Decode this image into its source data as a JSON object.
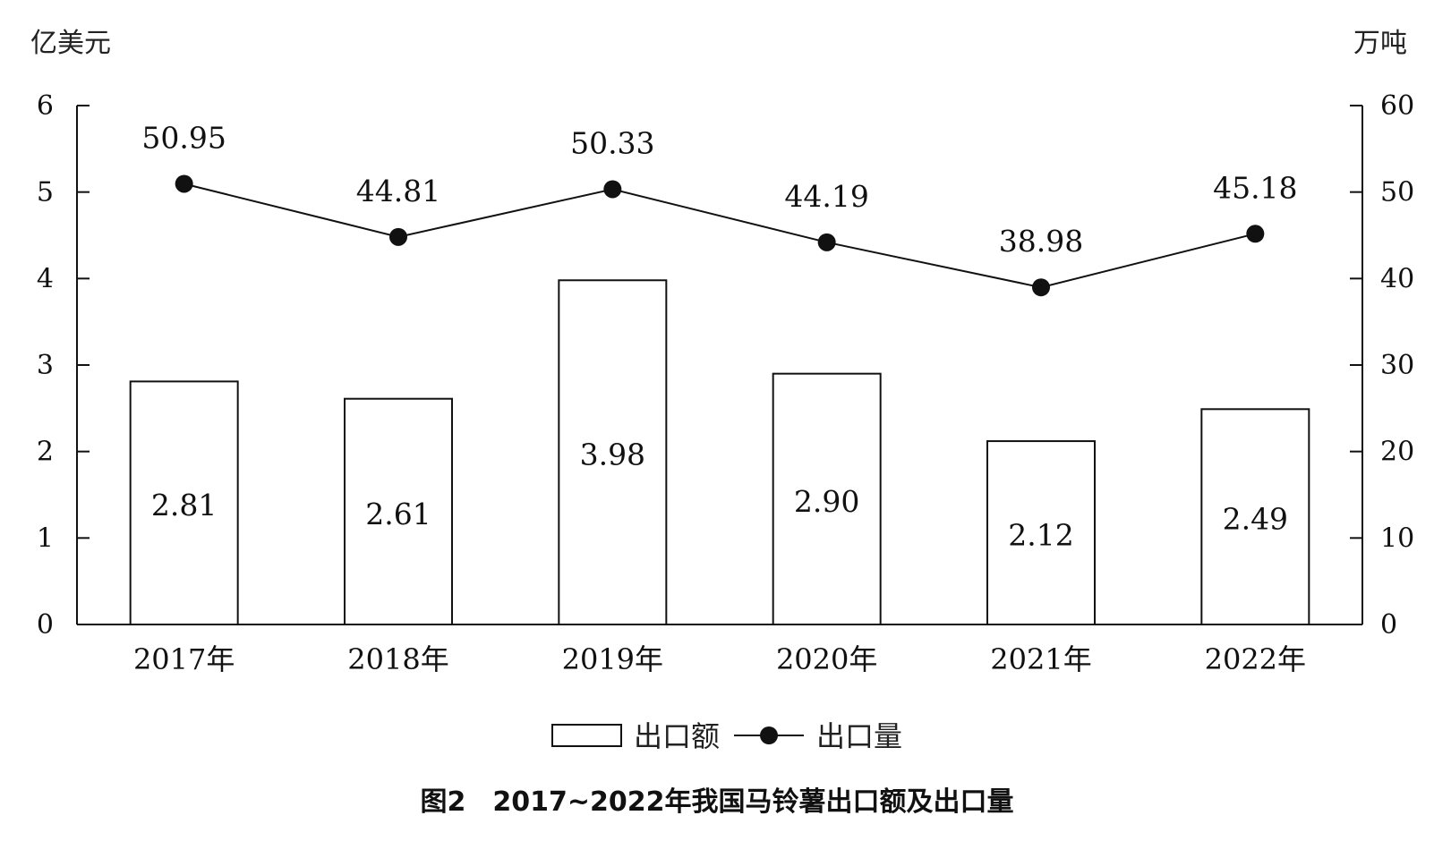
{
  "chart_data": {
    "type": "bar+line",
    "title": "图2　2017~2022年我国马铃薯出口额及出口量",
    "categories": [
      "2017年",
      "2018年",
      "2019年",
      "2020年",
      "2021年",
      "2022年"
    ],
    "left_axis": {
      "unit": "亿美元",
      "ylim": [
        0,
        6
      ],
      "ticks": [
        "0",
        "1",
        "2",
        "3",
        "4",
        "5",
        "6"
      ]
    },
    "right_axis": {
      "unit": "万吨",
      "ylim": [
        0,
        60
      ],
      "ticks": [
        "0",
        "10",
        "20",
        "30",
        "40",
        "50",
        "60"
      ]
    },
    "series": [
      {
        "name": "出口额",
        "type": "bar",
        "axis": "left",
        "values": [
          2.81,
          2.61,
          3.98,
          2.9,
          2.12,
          2.49
        ],
        "labels": [
          "2.81",
          "2.61",
          "3.98",
          "2.90",
          "2.12",
          "2.49"
        ]
      },
      {
        "name": "出口量",
        "type": "line",
        "axis": "right",
        "values": [
          50.95,
          44.81,
          50.33,
          44.19,
          38.98,
          45.18
        ],
        "labels": [
          "50.95",
          "44.81",
          "50.33",
          "44.19",
          "38.98",
          "45.18"
        ]
      }
    ],
    "legend_position": "bottom-center",
    "grid": false
  }
}
